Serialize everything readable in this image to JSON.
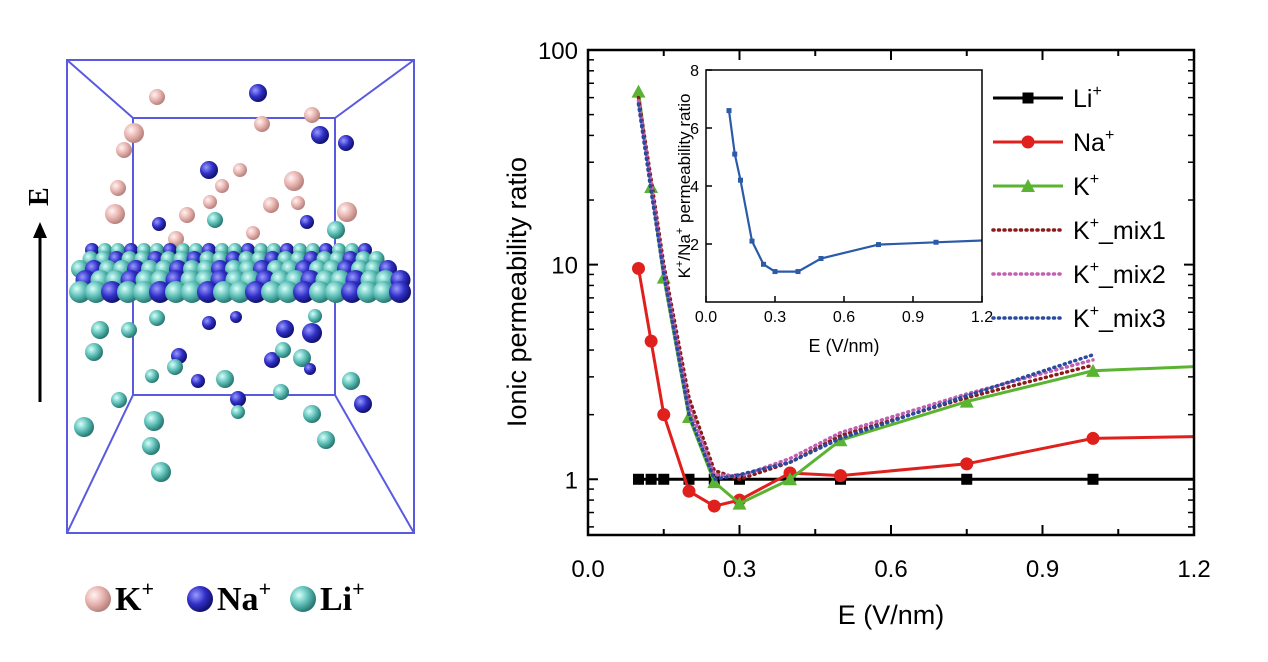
{
  "panel_left": {
    "field_label": "E",
    "legend": [
      {
        "name": "K",
        "charge": "+",
        "color": "#e8b4b0"
      },
      {
        "name": "Na",
        "charge": "+",
        "color": "#3a3ad0"
      },
      {
        "name": "Li",
        "charge": "+",
        "color": "#50b8b0"
      }
    ],
    "box_color": "#5a5ae0"
  },
  "chart_data": [
    {
      "type": "line",
      "xlabel": "E (V/nm)",
      "ylabel": "Ionic permeability ratio",
      "xlim": [
        0.0,
        1.2
      ],
      "ylim": [
        0.55,
        100
      ],
      "yscale": "log",
      "xticks": [
        "0.0",
        "0.3",
        "0.6",
        "0.9",
        "1.2"
      ],
      "yticks": [
        "1",
        "10",
        "100"
      ],
      "legend_position": "right",
      "series": [
        {
          "name": "Li",
          "sup": "+",
          "color": "#000000",
          "style": "solid",
          "marker": "square",
          "x": [
            0.1,
            0.125,
            0.15,
            0.2,
            0.25,
            0.3,
            0.4,
            0.5,
            0.75,
            1.0,
            1.2
          ],
          "y": [
            1,
            1,
            1,
            1,
            1,
            1,
            1,
            1,
            1,
            1,
            1
          ],
          "marker_x": [
            0.1,
            0.125,
            0.15,
            0.2,
            0.25,
            0.3,
            0.4,
            0.5,
            0.75,
            1.0
          ]
        },
        {
          "name": "Na",
          "sup": "+",
          "color": "#e0201c",
          "style": "solid",
          "marker": "circle",
          "x": [
            0.1,
            0.125,
            0.15,
            0.2,
            0.25,
            0.3,
            0.4,
            0.5,
            0.75,
            1.0,
            1.2
          ],
          "y": [
            9.6,
            4.4,
            2.0,
            0.88,
            0.75,
            0.8,
            1.07,
            1.04,
            1.18,
            1.55,
            1.58
          ],
          "marker_x": [
            0.1,
            0.125,
            0.15,
            0.2,
            0.25,
            0.3,
            0.4,
            0.5,
            0.75,
            1.0
          ]
        },
        {
          "name": "K",
          "sup": "+",
          "color": "#5ab432",
          "style": "solid",
          "marker": "triangle",
          "x": [
            0.1,
            0.125,
            0.15,
            0.2,
            0.25,
            0.3,
            0.4,
            0.5,
            0.75,
            1.0,
            1.2
          ],
          "y": [
            64,
            23,
            8.7,
            1.95,
            0.97,
            0.77,
            1.0,
            1.52,
            2.3,
            3.2,
            3.35
          ],
          "marker_x": [
            0.1,
            0.125,
            0.15,
            0.2,
            0.25,
            0.3,
            0.4,
            0.5,
            0.75,
            1.0
          ]
        },
        {
          "name": "K",
          "sup": "+",
          "suffix": "_mix1",
          "color": "#8b1a1a",
          "style": "dotted",
          "marker": "none",
          "x": [
            0.1,
            0.125,
            0.15,
            0.2,
            0.25,
            0.3,
            0.4,
            0.5,
            0.75,
            1.0
          ],
          "y": [
            60,
            25,
            10,
            2.4,
            1.1,
            1.0,
            1.2,
            1.6,
            2.4,
            3.4
          ]
        },
        {
          "name": "K",
          "sup": "+",
          "suffix": "_mix2",
          "color": "#c060b0",
          "style": "dotted",
          "marker": "none",
          "x": [
            0.1,
            0.125,
            0.15,
            0.2,
            0.25,
            0.3,
            0.4,
            0.5,
            0.75,
            1.0
          ],
          "y": [
            58,
            24,
            9.5,
            2.2,
            1.05,
            1.03,
            1.25,
            1.65,
            2.5,
            3.6
          ]
        },
        {
          "name": "K",
          "sup": "+",
          "suffix": "_mix3",
          "color": "#2a4aa0",
          "style": "dotted",
          "marker": "none",
          "x": [
            0.1,
            0.125,
            0.15,
            0.2,
            0.25,
            0.3,
            0.4,
            0.5,
            0.75,
            1.0
          ],
          "y": [
            56,
            22,
            9.0,
            2.0,
            1.0,
            1.05,
            1.2,
            1.55,
            2.45,
            3.8
          ]
        }
      ]
    },
    {
      "type": "line",
      "inset": true,
      "xlabel": "E (V/nm)",
      "ylabel_parts": [
        "K",
        "+",
        "/Na",
        "+",
        " permeability ratio"
      ],
      "xlim": [
        0.0,
        1.2
      ],
      "ylim": [
        0,
        8
      ],
      "xticks": [
        "0.0",
        "0.3",
        "0.6",
        "0.9",
        "1.2"
      ],
      "yticks": [
        "2",
        "4",
        "6",
        "8"
      ],
      "series": [
        {
          "color": "#2a5aa8",
          "marker": "dash",
          "x": [
            0.1,
            0.125,
            0.15,
            0.2,
            0.25,
            0.3,
            0.4,
            0.5,
            0.75,
            1.0,
            1.2
          ],
          "y": [
            6.6,
            5.1,
            4.2,
            2.1,
            1.3,
            1.05,
            1.05,
            1.5,
            1.98,
            2.06,
            2.12
          ],
          "marker_x": [
            0.1,
            0.125,
            0.15,
            0.2,
            0.25,
            0.3,
            0.4,
            0.5,
            0.75,
            1.0
          ]
        }
      ]
    }
  ]
}
